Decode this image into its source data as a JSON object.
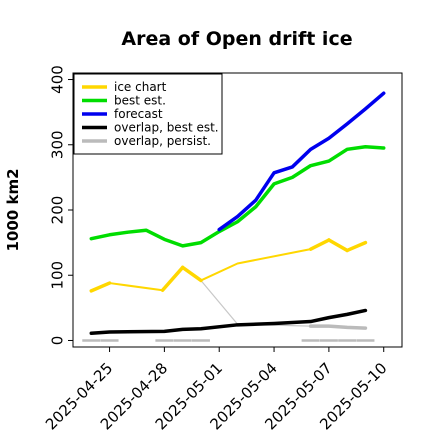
{
  "chart_data": {
    "type": "line",
    "title": "Area of Open drift ice",
    "xlabel": "",
    "ylabel": "1000 km2",
    "ylim": [
      -10,
      410
    ],
    "xlim": [
      "2025-04-23",
      "2025-05-11"
    ],
    "grid": false,
    "legend_position": "top-left",
    "x_ticks": [
      "2025-04-25",
      "2025-04-28",
      "2025-05-01",
      "2025-05-04",
      "2025-05-07",
      "2025-05-10"
    ],
    "highlighted_x_tick": "2025-05-01",
    "highlight_color": "#228b22",
    "y_ticks": [
      0,
      100,
      200,
      300,
      400
    ],
    "series": [
      {
        "name": "ice chart",
        "color": "#ffd700",
        "points": [
          [
            "2025-04-24",
            76
          ],
          [
            "2025-04-25",
            88
          ],
          [
            "2025-04-27.9",
            77
          ],
          [
            "2025-04-29",
            112
          ],
          [
            "2025-04-30",
            92
          ],
          [
            "2025-05-02",
            118
          ],
          [
            "2025-05-06",
            140
          ],
          [
            "2025-05-07",
            154
          ],
          [
            "2025-05-08",
            138
          ],
          [
            "2025-05-09",
            150
          ]
        ]
      },
      {
        "name": "best est.",
        "color": "#00dd00",
        "points": [
          [
            "2025-04-24",
            156
          ],
          [
            "2025-04-25",
            162
          ],
          [
            "2025-04-26",
            166
          ],
          [
            "2025-04-27",
            169
          ],
          [
            "2025-04-28",
            155
          ],
          [
            "2025-04-29",
            145
          ],
          [
            "2025-04-30",
            150
          ],
          [
            "2025-05-01",
            167
          ],
          [
            "2025-05-02",
            182
          ],
          [
            "2025-05-03",
            205
          ],
          [
            "2025-05-04",
            240
          ],
          [
            "2025-05-05",
            250
          ],
          [
            "2025-05-06",
            268
          ],
          [
            "2025-05-07",
            275
          ],
          [
            "2025-05-08",
            293
          ],
          [
            "2025-05-09",
            297
          ],
          [
            "2025-05-10",
            295
          ]
        ]
      },
      {
        "name": "forecast",
        "color": "#0000ee",
        "points": [
          [
            "2025-05-01",
            170
          ],
          [
            "2025-05-02",
            190
          ],
          [
            "2025-05-03",
            215
          ],
          [
            "2025-05-04",
            257
          ],
          [
            "2025-05-05",
            266
          ],
          [
            "2025-05-06",
            293
          ],
          [
            "2025-05-07",
            310
          ],
          [
            "2025-05-08",
            332
          ],
          [
            "2025-05-09",
            355
          ],
          [
            "2025-05-10",
            379
          ]
        ]
      },
      {
        "name": "overlap, best est.",
        "color": "#000000",
        "points": [
          [
            "2025-04-24",
            11
          ],
          [
            "2025-04-25",
            13
          ],
          [
            "2025-04-28",
            14
          ],
          [
            "2025-04-29",
            17
          ],
          [
            "2025-04-30",
            18
          ],
          [
            "2025-05-02",
            24
          ],
          [
            "2025-05-04",
            26
          ],
          [
            "2025-05-06",
            29
          ],
          [
            "2025-05-07",
            35
          ],
          [
            "2025-05-08",
            40
          ],
          [
            "2025-05-09",
            46
          ]
        ]
      },
      {
        "name": "overlap, persist.",
        "color": "#bbbbbb",
        "points": [
          [
            "2025-05-06",
            22
          ],
          [
            "2025-05-07",
            22
          ],
          [
            "2025-05-08",
            20
          ],
          [
            "2025-05-09",
            19
          ]
        ]
      }
    ],
    "connector_line": {
      "color": "#c8c8c8",
      "points": [
        [
          "2025-04-30",
          92
        ],
        [
          "2025-05-02",
          25
        ],
        [
          "2025-05-06",
          22
        ]
      ]
    },
    "baseline_markers": {
      "color": "#bbbbbb",
      "x": [
        "2025-04-24",
        "2025-04-25",
        "2025-04-28",
        "2025-04-29",
        "2025-04-30",
        "2025-05-06",
        "2025-05-07",
        "2025-05-08",
        "2025-05-09"
      ],
      "y": 0
    }
  }
}
